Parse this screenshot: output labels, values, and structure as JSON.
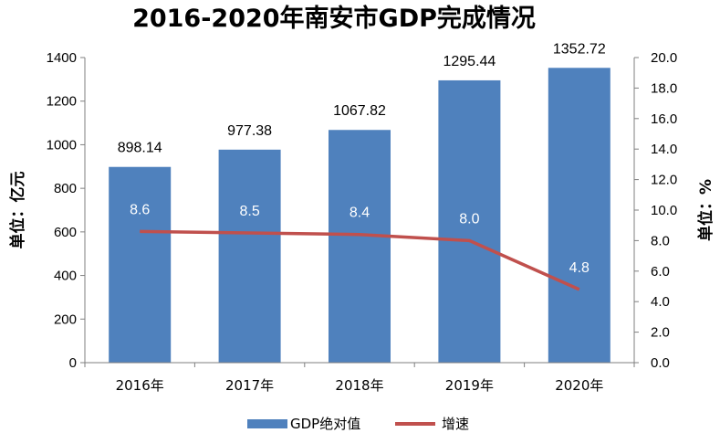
{
  "chart_data": {
    "type": "bar",
    "title": "2016-2020年南安市GDP完成情况",
    "categories": [
      "2016年",
      "2017年",
      "2018年",
      "2019年",
      "2020年"
    ],
    "series": [
      {
        "name": "GDP绝对值",
        "type": "bar",
        "axis": "left",
        "color": "#4F81BD",
        "values": [
          898.14,
          977.38,
          1067.82,
          1295.44,
          1352.72
        ],
        "labels": [
          "898.14",
          "977.38",
          "1067.82",
          "1295.44",
          "1352.72"
        ]
      },
      {
        "name": "增速",
        "type": "line",
        "axis": "right",
        "color": "#C0504D",
        "values": [
          8.6,
          8.5,
          8.4,
          8.0,
          4.8
        ],
        "labels": [
          "8.6",
          "8.5",
          "8.4",
          "8.0",
          "4.8"
        ]
      }
    ],
    "ylabel": "单位：亿元",
    "y2label": "单位：%",
    "ylim": [
      0,
      1400
    ],
    "y2lim": [
      0,
      20
    ],
    "yticks": [
      "0",
      "200",
      "400",
      "600",
      "800",
      "1000",
      "1200",
      "1400"
    ],
    "y2ticks": [
      "0.0",
      "2.0",
      "4.0",
      "6.0",
      "8.0",
      "10.0",
      "12.0",
      "14.0",
      "16.0",
      "18.0",
      "20.0"
    ],
    "grid": false,
    "legend_position": "bottom"
  }
}
